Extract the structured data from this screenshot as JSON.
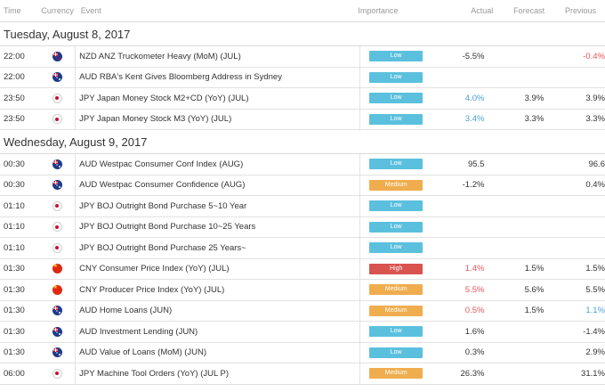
{
  "header": {
    "time": "Time",
    "currency": "Currency",
    "event": "Event",
    "importance": "Importance",
    "actual": "Actual",
    "forecast": "Forecast",
    "previous": "Previous"
  },
  "colors": {
    "low": "#5bc0de",
    "medium": "#f0ad4e",
    "high": "#d9534f",
    "positive": "#4a9fd6",
    "negative": "#e8535a"
  },
  "days": [
    {
      "date": "Tuesday, August 8, 2017",
      "rows": [
        {
          "time": "22:00",
          "flag": "nz-flag-icon",
          "event": "NZD ANZ Truckometer Heavy (MoM) (JUL)",
          "importance": "Low",
          "actual": "-5.5%",
          "actual_color": "",
          "forecast": "",
          "previous": "-0.4%",
          "previous_color": "neg"
        },
        {
          "time": "22:00",
          "flag": "au-flag-icon",
          "event": "AUD RBA's Kent Gives Bloomberg Address in Sydney",
          "importance": "Low",
          "actual": "",
          "actual_color": "",
          "forecast": "",
          "previous": "",
          "previous_color": ""
        },
        {
          "time": "23:50",
          "flag": "jp-flag-icon",
          "event": "JPY Japan Money Stock M2+CD (YoY) (JUL)",
          "importance": "Low",
          "actual": "4.0%",
          "actual_color": "pos",
          "forecast": "3.9%",
          "previous": "3.9%",
          "previous_color": ""
        },
        {
          "time": "23:50",
          "flag": "jp-flag-icon",
          "event": "JPY Japan Money Stock M3 (YoY) (JUL)",
          "importance": "Low",
          "actual": "3.4%",
          "actual_color": "pos",
          "forecast": "3.3%",
          "previous": "3.3%",
          "previous_color": ""
        }
      ]
    },
    {
      "date": "Wednesday, August 9, 2017",
      "rows": [
        {
          "time": "00:30",
          "flag": "au-flag-icon",
          "event": "AUD Westpac Consumer Conf Index (AUG)",
          "importance": "Low",
          "actual": "95.5",
          "actual_color": "",
          "forecast": "",
          "previous": "96.6",
          "previous_color": ""
        },
        {
          "time": "00:30",
          "flag": "au-flag-icon",
          "event": "AUD Westpac Consumer Confidence (AUG)",
          "importance": "Medium",
          "actual": "-1.2%",
          "actual_color": "",
          "forecast": "",
          "previous": "0.4%",
          "previous_color": ""
        },
        {
          "time": "01:10",
          "flag": "jp-flag-icon",
          "event": "JPY BOJ Outright Bond Purchase 5~10 Year",
          "importance": "Low",
          "actual": "",
          "actual_color": "",
          "forecast": "",
          "previous": "",
          "previous_color": ""
        },
        {
          "time": "01:10",
          "flag": "jp-flag-icon",
          "event": "JPY BOJ Outright Bond Purchase 10~25 Years",
          "importance": "Low",
          "actual": "",
          "actual_color": "",
          "forecast": "",
          "previous": "",
          "previous_color": ""
        },
        {
          "time": "01:10",
          "flag": "jp-flag-icon",
          "event": "JPY BOJ Outright Bond Purchase 25 Years~",
          "importance": "Low",
          "actual": "",
          "actual_color": "",
          "forecast": "",
          "previous": "",
          "previous_color": ""
        },
        {
          "time": "01:30",
          "flag": "cn-flag-icon",
          "event": "CNY Consumer Price Index (YoY) (JUL)",
          "importance": "High",
          "actual": "1.4%",
          "actual_color": "neg",
          "forecast": "1.5%",
          "previous": "1.5%",
          "previous_color": ""
        },
        {
          "time": "01:30",
          "flag": "cn-flag-icon",
          "event": "CNY Producer Price Index (YoY) (JUL)",
          "importance": "Medium",
          "actual": "5.5%",
          "actual_color": "neg",
          "forecast": "5.6%",
          "previous": "5.5%",
          "previous_color": ""
        },
        {
          "time": "01:30",
          "flag": "au-flag-icon",
          "event": "AUD Home Loans (JUN)",
          "importance": "Medium",
          "actual": "0.5%",
          "actual_color": "neg",
          "forecast": "1.5%",
          "previous": "1.1%",
          "previous_color": "pos"
        },
        {
          "time": "01:30",
          "flag": "au-flag-icon",
          "event": "AUD Investment Lending (JUN)",
          "importance": "Low",
          "actual": "1.6%",
          "actual_color": "",
          "forecast": "",
          "previous": "-1.4%",
          "previous_color": ""
        },
        {
          "time": "01:30",
          "flag": "au-flag-icon",
          "event": "AUD Value of Loans (MoM) (JUN)",
          "importance": "Low",
          "actual": "0.3%",
          "actual_color": "",
          "forecast": "",
          "previous": "2.9%",
          "previous_color": ""
        },
        {
          "time": "06:00",
          "flag": "jp-flag-icon",
          "event": "JPY Machine Tool Orders (YoY) (JUL P)",
          "importance": "Medium",
          "actual": "26.3%",
          "actual_color": "",
          "forecast": "",
          "previous": "31.1%",
          "previous_color": ""
        }
      ]
    }
  ]
}
